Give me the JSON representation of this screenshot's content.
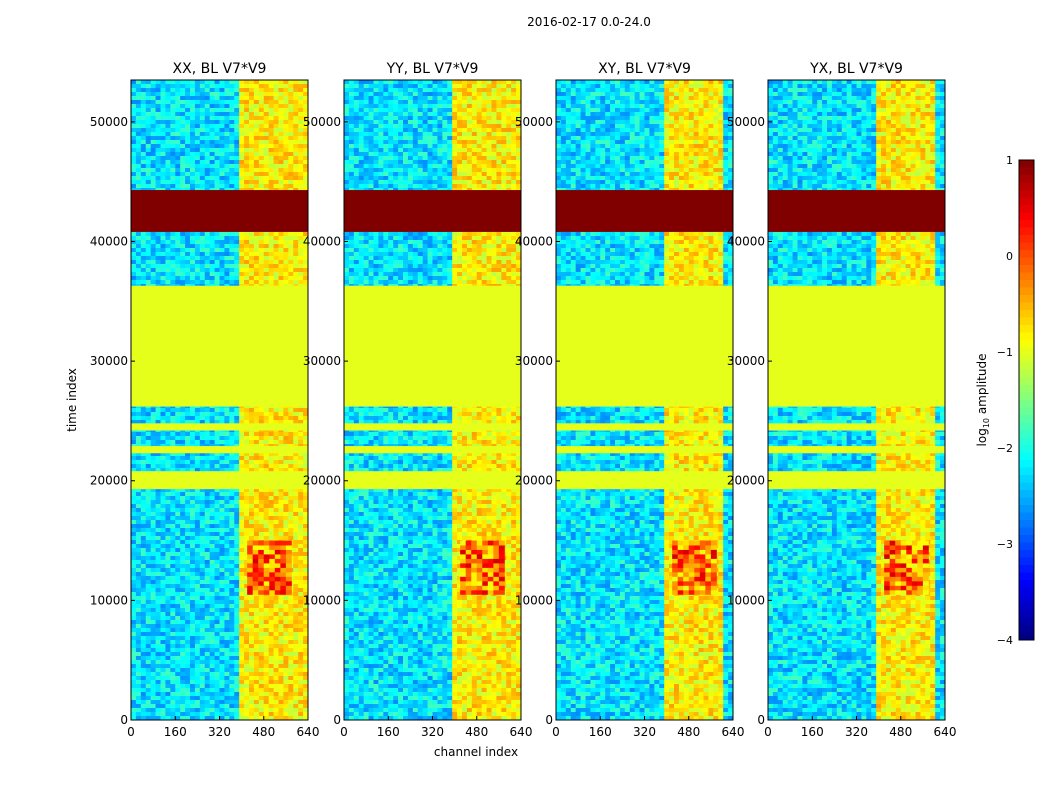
{
  "figure": {
    "suptitle": "2016-02-17 0.0-24.0"
  },
  "chart_data": {
    "type": "heatmap",
    "xlabel": "channel index",
    "ylabel": "time index",
    "xlim": [
      0,
      640
    ],
    "ylim": [
      0,
      53500
    ],
    "x_ticks": [
      "0",
      "160",
      "320",
      "480",
      "640"
    ],
    "y_ticks": [
      "0",
      "10000",
      "20000",
      "30000",
      "40000",
      "50000"
    ],
    "panels": [
      {
        "title": "XX, BL V7*V9",
        "bright_channels": [
          400,
          640
        ]
      },
      {
        "title": "YY, BL V7*V9",
        "bright_channels": [
          400,
          640
        ]
      },
      {
        "title": "XY, BL V7*V9",
        "bright_channels": [
          400,
          600
        ]
      },
      {
        "title": "YX, BL V7*V9",
        "bright_channels": [
          400,
          600
        ]
      }
    ],
    "flag_bands": [
      {
        "y0": 40800,
        "y1": 44300,
        "log_amp": 1
      },
      {
        "y0": 26200,
        "y1": 36300,
        "log_amp": -1
      },
      {
        "y0": 19300,
        "y1": 20800,
        "log_amp": -1
      },
      {
        "y0": 22300,
        "y1": 22900,
        "log_amp": -1
      },
      {
        "y0": 24200,
        "y1": 24800,
        "log_amp": -1
      }
    ],
    "hot_region": {
      "y0": 10500,
      "y1": 15000,
      "x0": 420,
      "x1": 580,
      "log_amp": 0.6
    },
    "colorbar": {
      "label": "log10 amplitude",
      "label_base": "log",
      "label_sub": "10",
      "label_rest": " amplitude",
      "range": [
        -4,
        1
      ],
      "ticks": [
        "1",
        "0",
        "−1",
        "−2",
        "−3",
        "−4"
      ],
      "colormap": "jet"
    }
  }
}
